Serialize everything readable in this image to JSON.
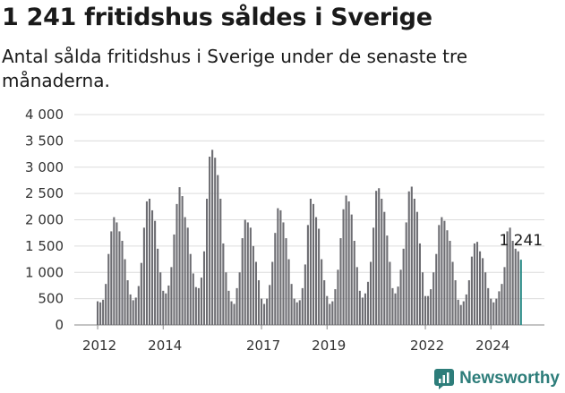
{
  "title": "1 241 fritidshus såldes i Sverige",
  "subtitle": "Antal sålda fritidshus i Sverige under de senaste tre månaderna.",
  "brand": {
    "name": "Newsworthy",
    "icon": "newsworthy-logo-icon"
  },
  "colors": {
    "bar": "#6d6d72",
    "highlight": "#2a8a86",
    "brand": "#2d7d7a"
  },
  "chart_data": {
    "type": "bar",
    "title": "1 241 fritidshus såldes i Sverige",
    "xlabel": "",
    "ylabel": "",
    "ylim": [
      0,
      4000
    ],
    "yticks": [
      0,
      500,
      1000,
      1500,
      2000,
      2500,
      3000,
      3500,
      4000
    ],
    "ytick_labels": [
      "0",
      "500",
      "1 000",
      "1 500",
      "2 000",
      "2 500",
      "3 000",
      "3 500",
      "4 000"
    ],
    "xtick_labels": [
      {
        "label": "2012",
        "index": 0
      },
      {
        "label": "2014",
        "index": 24
      },
      {
        "label": "2017",
        "index": 60
      },
      {
        "label": "2019",
        "index": 84
      },
      {
        "label": "2022",
        "index": 120
      },
      {
        "label": "2024",
        "index": 144
      }
    ],
    "annotation": {
      "text": "1 241",
      "index": 155
    },
    "grid": true,
    "legend": "none",
    "highlight_index": 155,
    "values": [
      450,
      430,
      480,
      780,
      1350,
      1780,
      2050,
      1950,
      1780,
      1600,
      1250,
      850,
      580,
      470,
      520,
      740,
      1180,
      1850,
      2350,
      2400,
      2180,
      1980,
      1450,
      1000,
      650,
      600,
      750,
      1100,
      1720,
      2300,
      2620,
      2450,
      2050,
      1850,
      1350,
      980,
      720,
      700,
      900,
      1400,
      2400,
      3200,
      3330,
      3180,
      2850,
      2400,
      1550,
      1000,
      650,
      450,
      400,
      700,
      1000,
      1650,
      2000,
      1950,
      1850,
      1500,
      1200,
      850,
      500,
      400,
      500,
      760,
      1200,
      1750,
      2220,
      2180,
      1950,
      1650,
      1250,
      780,
      500,
      430,
      470,
      700,
      1150,
      1900,
      2400,
      2300,
      2050,
      1830,
      1250,
      850,
      550,
      400,
      450,
      680,
      1050,
      1650,
      2200,
      2460,
      2350,
      2100,
      1600,
      1100,
      650,
      520,
      600,
      820,
      1200,
      1850,
      2550,
      2600,
      2400,
      2150,
      1700,
      1200,
      700,
      600,
      730,
      1050,
      1450,
      1950,
      2540,
      2630,
      2400,
      2150,
      1550,
      1000,
      550,
      550,
      680,
      1000,
      1350,
      1900,
      2050,
      1980,
      1800,
      1600,
      1200,
      850,
      480,
      380,
      450,
      580,
      850,
      1300,
      1550,
      1580,
      1400,
      1270,
      1000,
      700,
      500,
      430,
      500,
      640,
      780,
      1100,
      1780,
      1850,
      1600,
      1450,
      1400,
      1241
    ]
  }
}
